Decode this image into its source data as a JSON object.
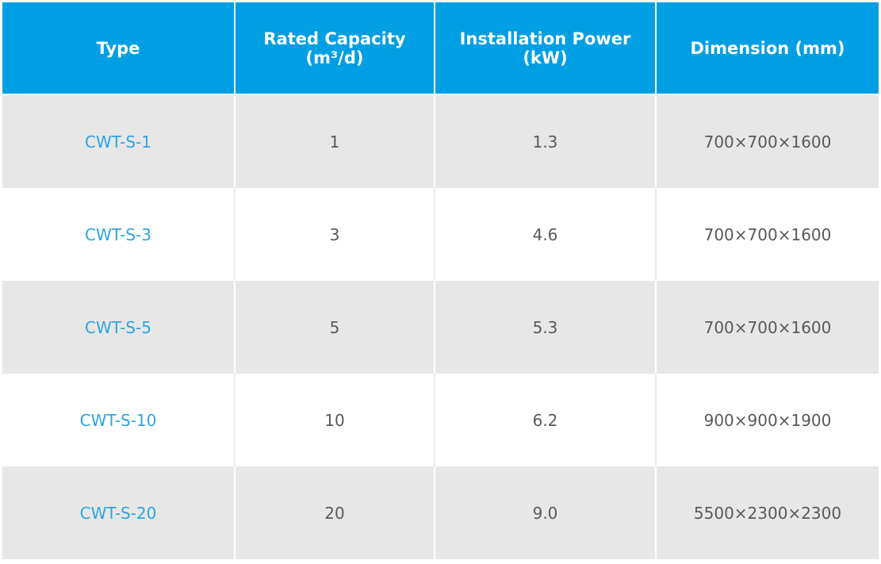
{
  "table": {
    "headers": [
      "Type",
      "Rated Capacity (m³/d)",
      "Installation Power (kW)",
      "Dimension (mm)"
    ],
    "rows": [
      {
        "type": "CWT-S-1",
        "capacity": "1",
        "power": "1.3",
        "dimension": "700×700×1600"
      },
      {
        "type": "CWT-S-3",
        "capacity": "3",
        "power": "4.6",
        "dimension": "700×700×1600"
      },
      {
        "type": "CWT-S-5",
        "capacity": "5",
        "power": "5.3",
        "dimension": "700×700×1600"
      },
      {
        "type": "CWT-S-10",
        "capacity": "10",
        "power": "6.2",
        "dimension": "900×900×1900"
      },
      {
        "type": "CWT-S-20",
        "capacity": "20",
        "power": "9.0",
        "dimension": "5500×2300×2300"
      }
    ]
  },
  "colors": {
    "header_bg": "#009FE3",
    "header_text": "#FFFFFF",
    "row_bg": "#FFFFFF",
    "row_alt_bg": "#E7E7E7",
    "type_text": "#2CA4E2",
    "cell_text": "#58595B"
  }
}
